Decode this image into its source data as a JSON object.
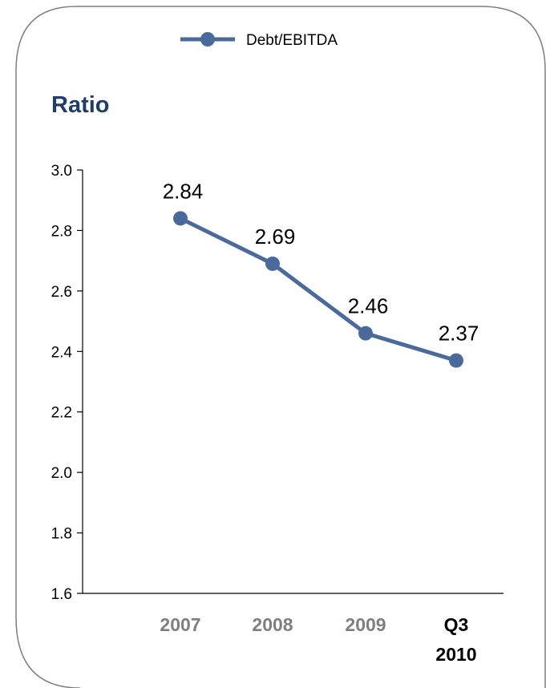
{
  "chart_data": {
    "type": "line",
    "title": "",
    "ylabel": "Ratio",
    "xlabel": "",
    "categories": [
      [
        "2007"
      ],
      [
        "2008"
      ],
      [
        "2009"
      ],
      [
        "Q3",
        "2010"
      ]
    ],
    "category_colors": [
      "#7f7f7f",
      "#7f7f7f",
      "#7f7f7f",
      "#000000"
    ],
    "series": [
      {
        "name": "Debt/EBITDA",
        "values": [
          2.84,
          2.69,
          2.46,
          2.37
        ],
        "labels": [
          "2.84",
          "2.69",
          "2.46",
          "2.37"
        ],
        "color": "#4a6a9c"
      }
    ],
    "ylim": [
      1.6,
      3.0
    ],
    "yticks": [
      "1.6",
      "1.8",
      "2.0",
      "2.2",
      "2.4",
      "2.6",
      "2.8",
      "3.0"
    ],
    "ylabel_color": "#1f3f66",
    "legend_position": "top-center",
    "grid": false
  }
}
